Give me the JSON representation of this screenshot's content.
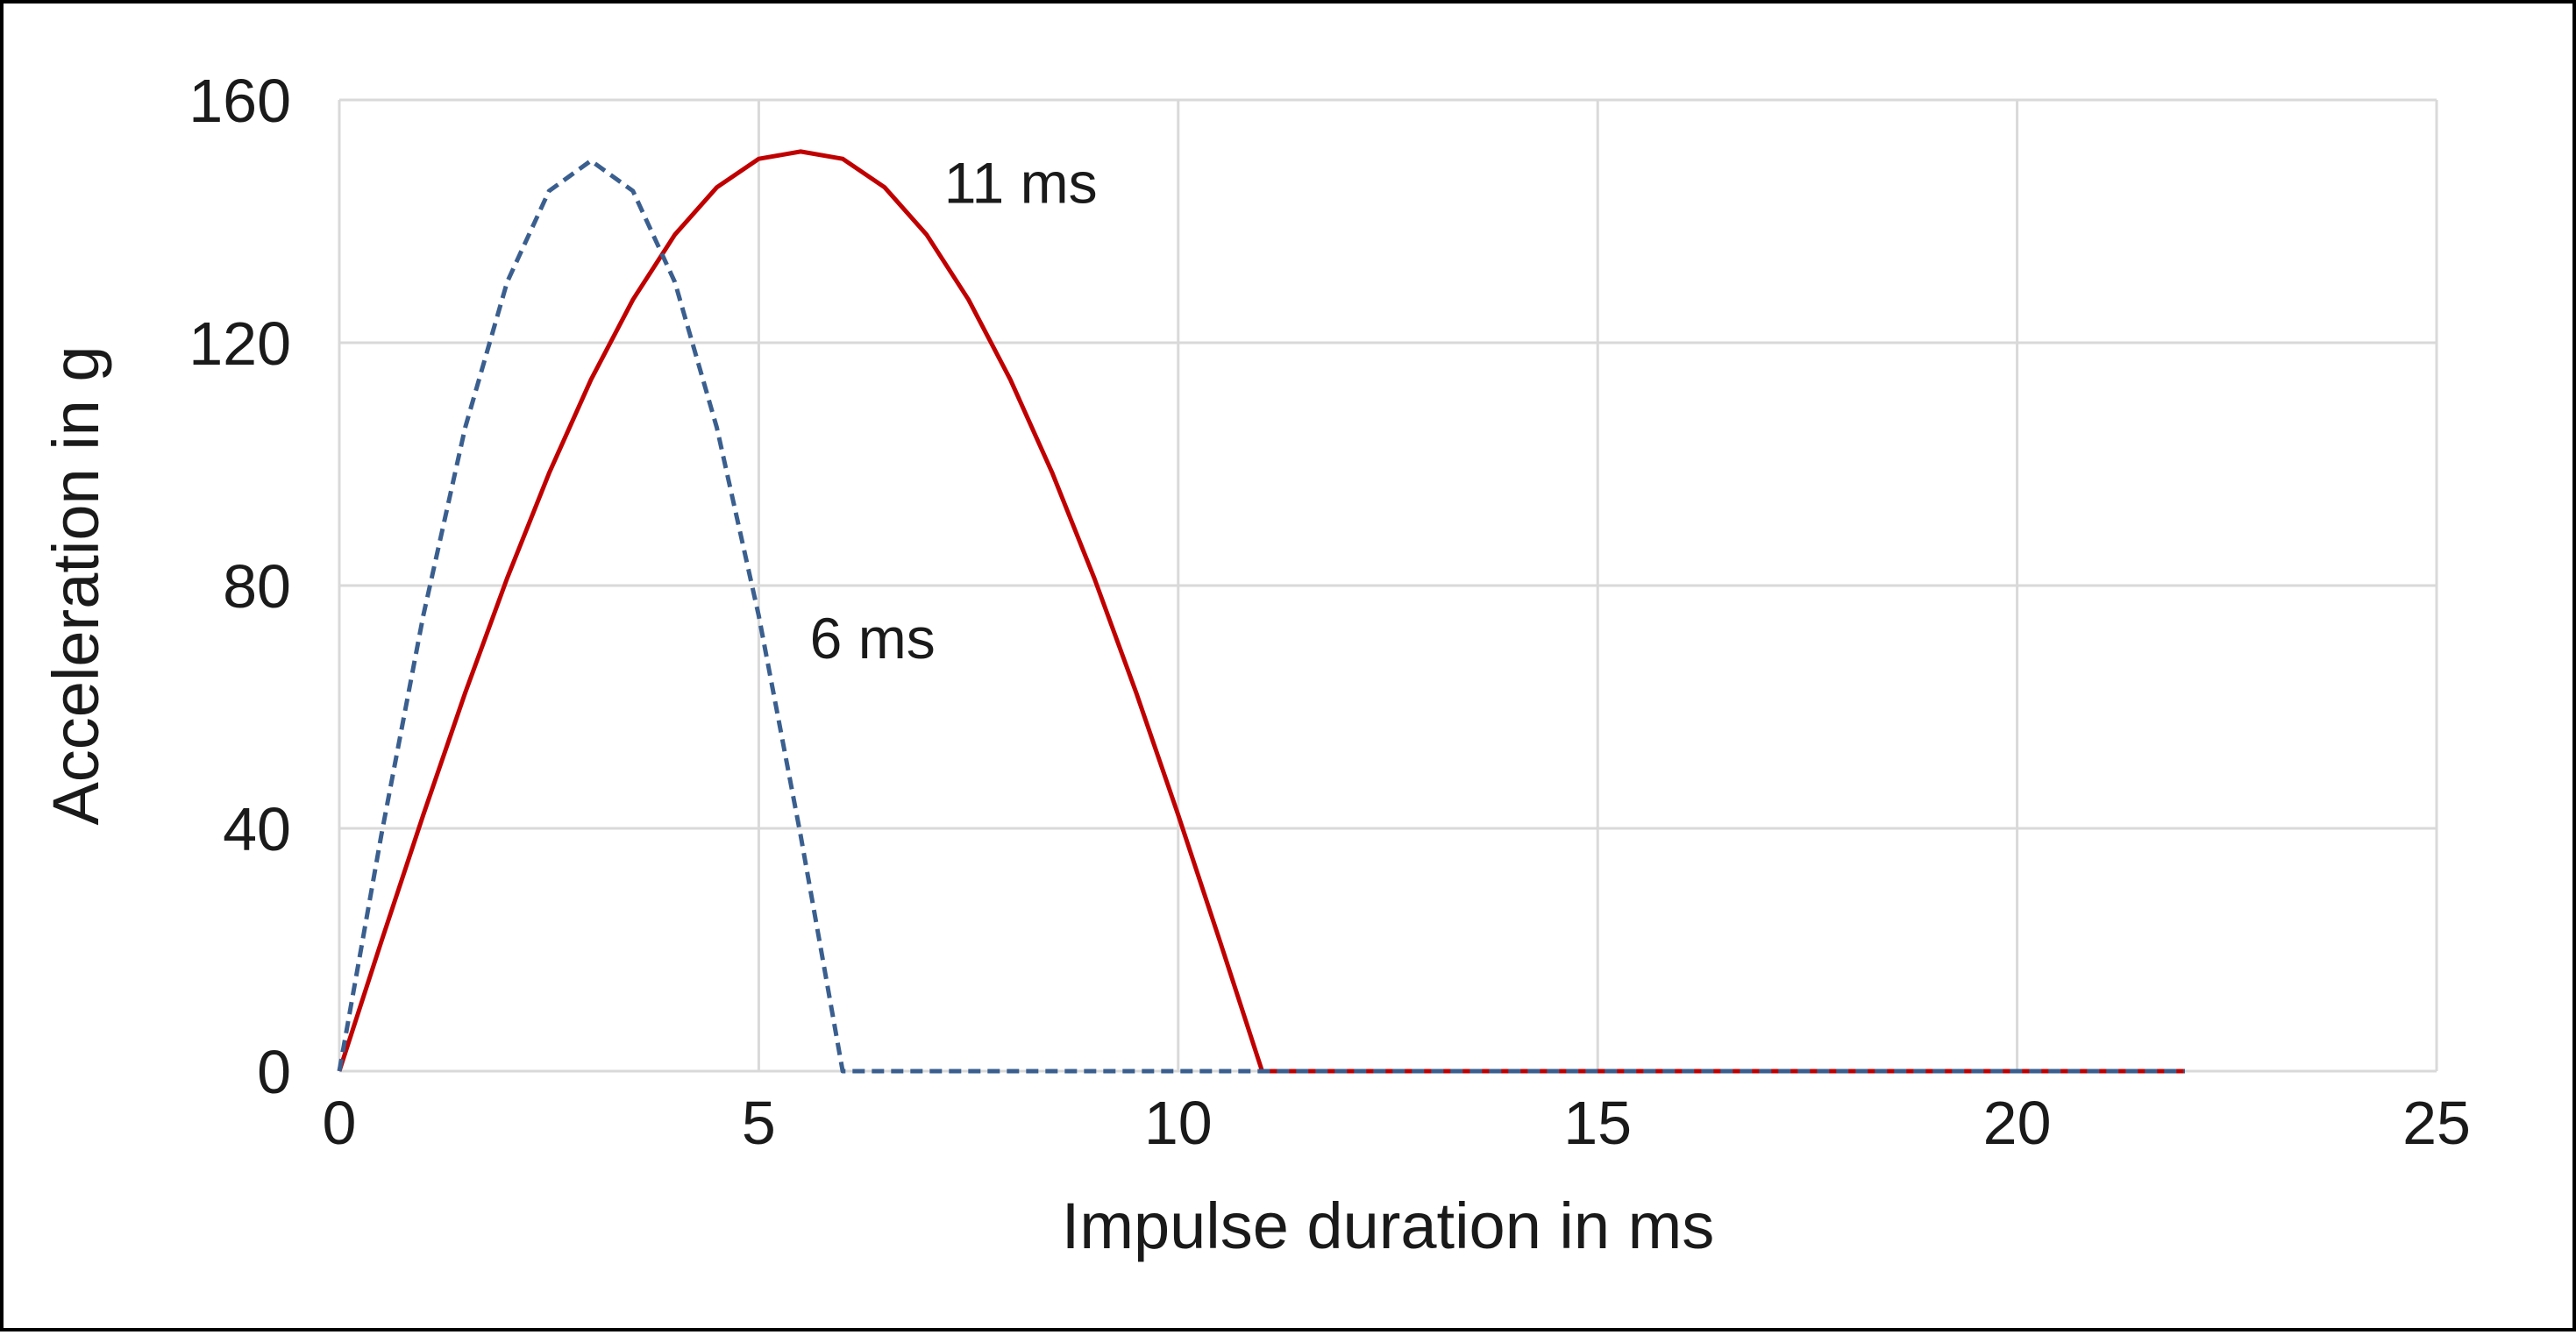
{
  "chart_data": {
    "type": "line",
    "xlabel": "Impulse duration in ms",
    "ylabel": "Acceleration in g",
    "xlim": [
      0,
      25
    ],
    "ylim": [
      0,
      160
    ],
    "xticks": [
      0,
      5,
      10,
      15,
      20,
      25
    ],
    "yticks": [
      0,
      40,
      80,
      120,
      160
    ],
    "grid": true,
    "legend": "none",
    "series": [
      {
        "color": "#c00000",
        "style": "solid",
        "x": [
          0,
          0.5,
          1,
          1.5,
          2,
          2.5,
          3,
          3.5,
          4,
          4.5,
          5,
          5.5,
          6,
          6.5,
          7,
          7.5,
          8,
          8.5,
          9,
          9.5,
          10,
          10.5,
          11,
          22
        ],
        "y": [
          0,
          21.3,
          42.2,
          62.3,
          81.2,
          98.5,
          113.9,
          127.1,
          137.8,
          145.6,
          150.3,
          151.5,
          150.3,
          145.6,
          137.8,
          127.1,
          113.9,
          98.5,
          81.2,
          62.3,
          42.2,
          21.3,
          0,
          0
        ]
      },
      {
        "color": "#3a5f8f",
        "style": "dashed",
        "x": [
          0,
          0.5,
          1,
          1.5,
          2,
          2.5,
          3,
          3.5,
          4,
          4.5,
          5,
          5.5,
          6,
          22
        ],
        "y": [
          0,
          38.8,
          75,
          106,
          130,
          145,
          150,
          145,
          130,
          106,
          75,
          38.8,
          0,
          0
        ]
      }
    ],
    "annotations": [
      {
        "text": "11 ms",
        "x": 7.0,
        "y": 143
      },
      {
        "text": "6 ms",
        "x": 5.4,
        "y": 68
      }
    ]
  }
}
